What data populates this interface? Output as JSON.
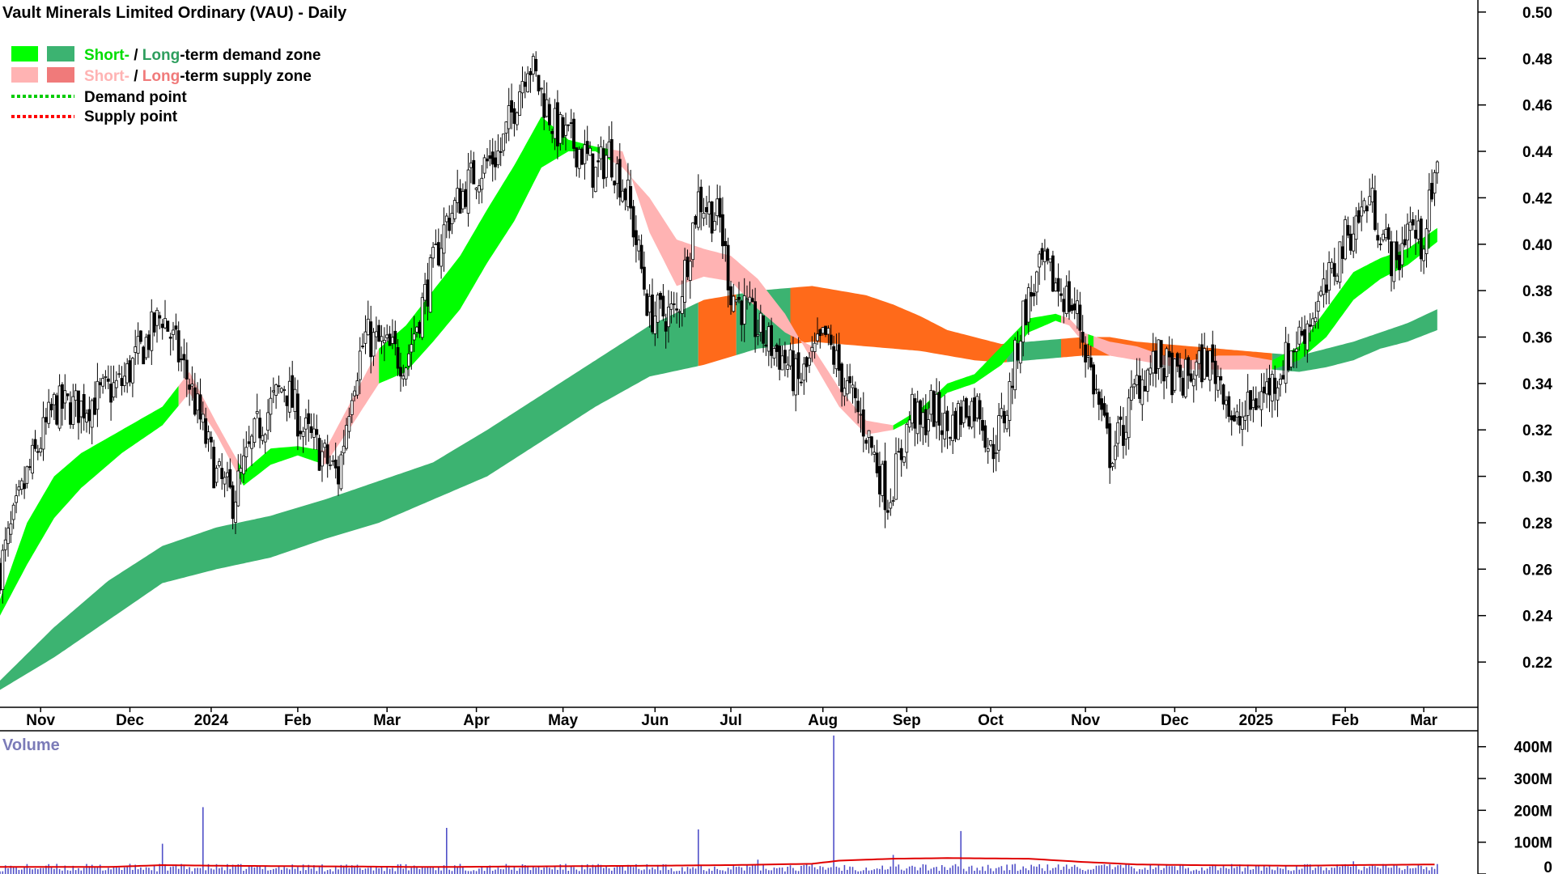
{
  "chart_data": {
    "type": "candlestick",
    "title": "Vault Minerals Limited Ordinary (VAU) - Daily",
    "legend": {
      "demand_short": "Short-",
      "demand_sep": " / ",
      "demand_long": "Long",
      "demand_suffix": "-term demand zone",
      "supply_short": "Short-",
      "supply_sep": " / ",
      "supply_long": "Long",
      "supply_suffix": "-term supply zone",
      "demand_point": "Demand point",
      "supply_point": "Supply point"
    },
    "x_labels": [
      "Nov",
      "Dec",
      "2024",
      "Feb",
      "Mar",
      "Apr",
      "May",
      "Jun",
      "Jul",
      "Aug",
      "Sep",
      "Oct",
      "Nov",
      "Dec",
      "2025",
      "Feb",
      "Mar"
    ],
    "x_label_days": [
      15,
      48,
      78,
      110,
      143,
      176,
      208,
      242,
      270,
      304,
      335,
      366,
      401,
      434,
      464,
      497,
      526
    ],
    "y_ticks": [
      0.5,
      0.48,
      0.46,
      0.44,
      0.42,
      0.4,
      0.38,
      0.36,
      0.34,
      0.32,
      0.3,
      0.28,
      0.26,
      0.24,
      0.22
    ],
    "y_tick_labels": [
      "0.50",
      "0.48",
      "0.46",
      "0.44",
      "0.42",
      "0.40",
      "0.38",
      "0.36",
      "0.34",
      "0.32",
      "0.30",
      "0.28",
      "0.26",
      "0.24",
      "0.22"
    ],
    "ylim": [
      0.2005,
      0.5052
    ],
    "xlim_days": [
      0,
      546
    ],
    "price_path": {
      "days": [
        0,
        10,
        20,
        30,
        45,
        60,
        70,
        75,
        80,
        86,
        95,
        105,
        112,
        125,
        130,
        135,
        150,
        160,
        165,
        175,
        185,
        195,
        205,
        215,
        220,
        225,
        232,
        240,
        250,
        258,
        266,
        270,
        276,
        282,
        290,
        295,
        300,
        305,
        312,
        320,
        328,
        333,
        337,
        340,
        344,
        350,
        357,
        362,
        366,
        372,
        378,
        385,
        392,
        398,
        402,
        406,
        410,
        415,
        420,
        428,
        436,
        446,
        452,
        456,
        462,
        470,
        480,
        490,
        496,
        506,
        512,
        516,
        520,
        525,
        531
      ],
      "close": [
        0.26,
        0.3,
        0.33,
        0.33,
        0.34,
        0.37,
        0.34,
        0.32,
        0.3,
        0.29,
        0.32,
        0.34,
        0.32,
        0.3,
        0.34,
        0.36,
        0.35,
        0.39,
        0.41,
        0.43,
        0.44,
        0.48,
        0.45,
        0.44,
        0.43,
        0.44,
        0.42,
        0.37,
        0.37,
        0.42,
        0.41,
        0.38,
        0.37,
        0.36,
        0.35,
        0.34,
        0.35,
        0.36,
        0.34,
        0.32,
        0.29,
        0.31,
        0.33,
        0.32,
        0.33,
        0.32,
        0.33,
        0.33,
        0.31,
        0.33,
        0.37,
        0.39,
        0.38,
        0.37,
        0.35,
        0.33,
        0.31,
        0.32,
        0.34,
        0.35,
        0.34,
        0.35,
        0.34,
        0.32,
        0.33,
        0.34,
        0.36,
        0.38,
        0.4,
        0.42,
        0.4,
        0.39,
        0.41,
        0.4,
        0.43
      ]
    },
    "bands": {
      "short_term_upper": {
        "days": [
          0,
          10,
          20,
          30,
          45,
          60,
          70,
          80,
          90,
          100,
          110,
          120,
          130,
          140,
          150,
          160,
          170,
          180,
          190,
          200,
          210,
          220,
          230,
          240,
          250,
          260,
          270,
          280,
          290,
          300,
          310,
          320,
          330,
          340,
          350,
          360,
          370,
          380,
          390,
          395,
          400,
          410,
          420,
          430,
          440,
          450,
          460,
          470,
          480,
          490,
          500,
          510,
          520,
          531
        ],
        "values": [
          0.247,
          0.28,
          0.3,
          0.31,
          0.32,
          0.33,
          0.345,
          0.323,
          0.302,
          0.312,
          0.313,
          0.311,
          0.333,
          0.355,
          0.365,
          0.38,
          0.395,
          0.415,
          0.434,
          0.455,
          0.445,
          0.442,
          0.44,
          0.405,
          0.382,
          0.386,
          0.384,
          0.372,
          0.362,
          0.356,
          0.338,
          0.324,
          0.322,
          0.329,
          0.34,
          0.344,
          0.356,
          0.368,
          0.37,
          0.368,
          0.362,
          0.358,
          0.356,
          0.352,
          0.35,
          0.352,
          0.352,
          0.35,
          0.356,
          0.372,
          0.388,
          0.394,
          0.398,
          0.407
        ]
      },
      "short_term_lower": {
        "days": [
          0,
          10,
          20,
          30,
          45,
          60,
          70,
          80,
          90,
          100,
          110,
          120,
          130,
          140,
          150,
          160,
          170,
          180,
          190,
          200,
          210,
          220,
          230,
          240,
          250,
          260,
          270,
          280,
          290,
          300,
          310,
          320,
          330,
          340,
          350,
          360,
          370,
          380,
          390,
          395,
          400,
          410,
          420,
          430,
          440,
          450,
          460,
          470,
          480,
          490,
          500,
          510,
          520,
          531
        ],
        "values": [
          0.24,
          0.262,
          0.282,
          0.295,
          0.31,
          0.322,
          0.336,
          0.318,
          0.296,
          0.305,
          0.309,
          0.305,
          0.322,
          0.34,
          0.345,
          0.358,
          0.372,
          0.392,
          0.41,
          0.433,
          0.44,
          0.44,
          0.433,
          0.42,
          0.402,
          0.398,
          0.395,
          0.385,
          0.37,
          0.35,
          0.33,
          0.318,
          0.32,
          0.326,
          0.336,
          0.34,
          0.348,
          0.362,
          0.367,
          0.365,
          0.358,
          0.352,
          0.35,
          0.348,
          0.346,
          0.346,
          0.346,
          0.346,
          0.35,
          0.36,
          0.376,
          0.385,
          0.391,
          0.401
        ]
      },
      "long_term_upper": {
        "days": [
          0,
          20,
          40,
          60,
          80,
          100,
          120,
          140,
          160,
          180,
          200,
          220,
          240,
          260,
          280,
          300,
          310,
          320,
          330,
          340,
          350,
          360,
          370,
          380,
          390,
          400,
          410,
          420,
          430,
          440,
          450,
          460,
          470,
          480,
          490,
          500,
          510,
          520,
          531
        ],
        "values": [
          0.212,
          0.235,
          0.255,
          0.27,
          0.278,
          0.283,
          0.29,
          0.298,
          0.306,
          0.32,
          0.335,
          0.35,
          0.365,
          0.376,
          0.38,
          0.382,
          0.38,
          0.378,
          0.374,
          0.369,
          0.363,
          0.36,
          0.357,
          0.358,
          0.359,
          0.36,
          0.36,
          0.358,
          0.357,
          0.356,
          0.355,
          0.354,
          0.353,
          0.352,
          0.355,
          0.358,
          0.362,
          0.366,
          0.372
        ]
      },
      "long_term_lower": {
        "days": [
          0,
          20,
          40,
          60,
          80,
          100,
          120,
          140,
          160,
          180,
          200,
          220,
          240,
          260,
          280,
          300,
          310,
          320,
          330,
          340,
          350,
          360,
          370,
          380,
          390,
          400,
          410,
          420,
          430,
          440,
          450,
          460,
          470,
          480,
          490,
          500,
          510,
          520,
          531
        ],
        "values": [
          0.208,
          0.222,
          0.238,
          0.254,
          0.26,
          0.265,
          0.273,
          0.28,
          0.29,
          0.3,
          0.315,
          0.33,
          0.343,
          0.348,
          0.355,
          0.358,
          0.357,
          0.356,
          0.355,
          0.354,
          0.352,
          0.35,
          0.349,
          0.35,
          0.351,
          0.352,
          0.352,
          0.351,
          0.35,
          0.349,
          0.348,
          0.347,
          0.346,
          0.345,
          0.347,
          0.35,
          0.355,
          0.358,
          0.363
        ]
      }
    },
    "supply_periods_short": [
      [
        66,
        88
      ],
      [
        118,
        140
      ],
      [
        226,
        262
      ],
      [
        262,
        330
      ],
      [
        392,
        402
      ],
      [
        404,
        440
      ],
      [
        440,
        470
      ]
    ],
    "supply_periods_long": [
      [
        258,
        272
      ],
      [
        292,
        372
      ],
      [
        392,
        470
      ]
    ],
    "volume": {
      "title": "Volume",
      "y_ticks": [
        400000000,
        300000000,
        200000000,
        100000000,
        0
      ],
      "y_tick_labels": [
        "400M",
        "300M",
        "200M",
        "100M",
        "0"
      ],
      "ylim": [
        0,
        450000000
      ],
      "typical_volume": 20000000,
      "spikes": [
        {
          "day": 60,
          "value": 95000000
        },
        {
          "day": 75,
          "value": 210000000
        },
        {
          "day": 165,
          "value": 145000000
        },
        {
          "day": 258,
          "value": 140000000
        },
        {
          "day": 308,
          "value": 435000000
        },
        {
          "day": 355,
          "value": 135000000
        },
        {
          "day": 330,
          "value": 60000000
        },
        {
          "day": 280,
          "value": 45000000
        },
        {
          "day": 500,
          "value": 40000000
        }
      ],
      "average_line": {
        "days": [
          0,
          40,
          60,
          80,
          120,
          160,
          200,
          240,
          270,
          300,
          310,
          330,
          350,
          380,
          400,
          420,
          440,
          480,
          500,
          531
        ],
        "values": [
          22000000,
          22000000,
          28000000,
          26000000,
          24000000,
          22000000,
          24000000,
          26000000,
          28000000,
          32000000,
          42000000,
          48000000,
          50000000,
          48000000,
          38000000,
          30000000,
          28000000,
          26000000,
          28000000,
          30000000
        ]
      }
    },
    "colors": {
      "short_demand": "#00ff00",
      "long_demand": "#3cb371",
      "short_supply": "#ffb3b3",
      "long_supply": "#ff6a1a",
      "demand_point": "#00cc00",
      "supply_point": "#ff0000",
      "candle": "#000000",
      "volume_bar": "#5050c8",
      "volume_avg": "#e00000",
      "axis": "#000000"
    }
  }
}
